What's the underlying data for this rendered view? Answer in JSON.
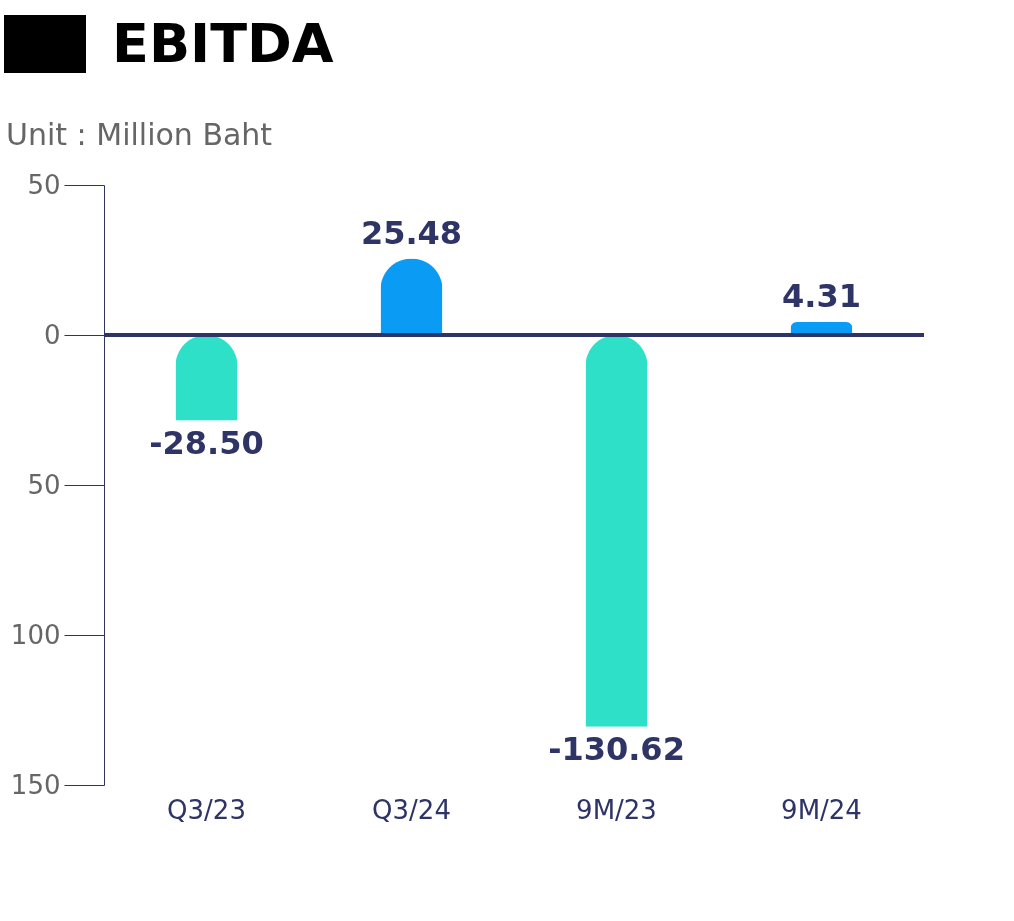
{
  "chart_data": {
    "type": "bar",
    "title": "EBITDA",
    "subtitle": "Unit : Million Baht",
    "categories": [
      "Q3/23",
      "Q3/24",
      "9M/23",
      "9M/24"
    ],
    "values": [
      -28.5,
      25.48,
      -130.62,
      4.31
    ],
    "colors": [
      "#2ee0c8",
      "#0a9cf5",
      "#2ee0c8",
      "#0a9cf5"
    ],
    "ylim": [
      -150,
      50
    ],
    "yticks": [
      {
        "value": 50,
        "label": "50"
      },
      {
        "value": 0,
        "label": "0"
      },
      {
        "value": -50,
        "label": "50"
      },
      {
        "value": -100,
        "label": "100"
      },
      {
        "value": -150,
        "label": "150"
      }
    ],
    "ref_lines": [
      {
        "axis": "y",
        "value": 0,
        "color": "#2e3466"
      }
    ],
    "value_labels": [
      "-28.50",
      "25.48",
      "-130.62",
      "4.31"
    ],
    "grid": false
  }
}
